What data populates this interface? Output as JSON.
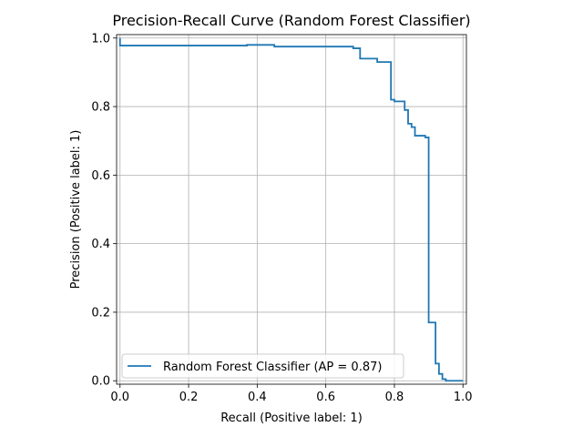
{
  "chart_data": {
    "type": "line",
    "title": "Precision-Recall Curve (Random Forest Classifier)",
    "xlabel": "Recall (Positive label: 1)",
    "ylabel": "Precision (Positive label: 1)",
    "xlim": [
      -0.01,
      1.01
    ],
    "ylim": [
      -0.01,
      1.01
    ],
    "xticks": [
      0.0,
      0.2,
      0.4,
      0.6,
      0.8,
      1.0
    ],
    "xtick_labels": [
      "0.0",
      "0.2",
      "0.4",
      "0.6",
      "0.8",
      "1.0"
    ],
    "yticks": [
      0.0,
      0.2,
      0.4,
      0.6,
      0.8,
      1.0
    ],
    "ytick_labels": [
      "0.0",
      "0.2",
      "0.4",
      "0.6",
      "0.8",
      "1.0"
    ],
    "grid": true,
    "legend_position": "lower-left",
    "series": [
      {
        "name": "Random Forest Classifier (AP = 0.87)",
        "color": "#1f77b4",
        "drawstyle": "steps-post",
        "x": [
          1.0,
          0.95,
          0.94,
          0.93,
          0.92,
          0.9,
          0.89,
          0.86,
          0.85,
          0.84,
          0.83,
          0.8,
          0.79,
          0.75,
          0.7,
          0.68,
          0.45,
          0.37,
          0.0
        ],
        "y": [
          0.0,
          0.005,
          0.02,
          0.05,
          0.17,
          0.71,
          0.715,
          0.74,
          0.75,
          0.79,
          0.815,
          0.82,
          0.93,
          0.94,
          0.97,
          0.975,
          0.98,
          0.978,
          1.0
        ]
      }
    ]
  }
}
